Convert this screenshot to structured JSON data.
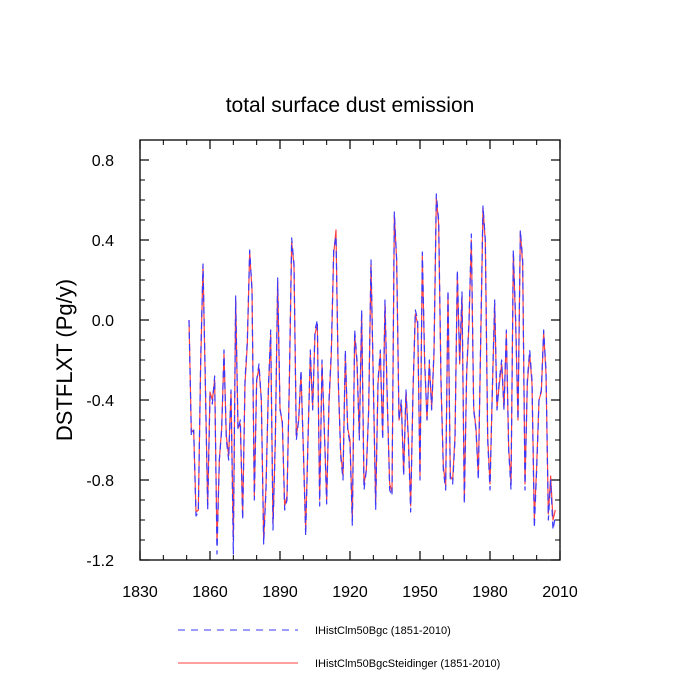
{
  "chart_data": {
    "type": "line",
    "title": "total surface dust emission",
    "xlabel": "",
    "ylabel": "DSTFLXT  (Pg/y)",
    "xlim": [
      1830,
      2010
    ],
    "ylim": [
      -1.2,
      0.9
    ],
    "xticks": [
      1830,
      1860,
      1890,
      1920,
      1950,
      1980,
      2010
    ],
    "xtick_labels": [
      "1830",
      "1860",
      "1890",
      "1920",
      "1950",
      "1980",
      "2010"
    ],
    "yticks": [
      -1.2,
      -0.8,
      -0.4,
      0.0,
      0.4,
      0.8
    ],
    "ytick_labels": [
      "-1.2",
      "-0.8",
      "-0.4",
      "0.0",
      "0.4",
      "0.8"
    ],
    "grid": false,
    "legend_position": "bottom",
    "x_start": 1851,
    "x_step": 1,
    "series": [
      {
        "name": "IHistClm50Bgc (1851-2010)",
        "color": "#3a3aff",
        "dash": "dashed",
        "values": [
          0.0,
          -0.58,
          -0.55,
          -0.98,
          -0.96,
          -0.2,
          0.28,
          -0.3,
          -0.95,
          -0.38,
          -0.42,
          -0.28,
          -1.17,
          -0.7,
          -0.55,
          -0.15,
          -0.6,
          -0.7,
          -0.35,
          -1.17,
          0.12,
          -0.55,
          -0.5,
          -1.0,
          -0.3,
          -0.1,
          0.35,
          0.15,
          -0.9,
          -0.3,
          -0.22,
          -0.4,
          -1.12,
          -0.85,
          -0.35,
          -0.05,
          -1.05,
          -0.6,
          0.21,
          -0.45,
          -0.5,
          -0.95,
          -0.9,
          -0.3,
          0.41,
          0.28,
          -0.6,
          -0.5,
          -0.25,
          -0.65,
          -1.08,
          -0.6,
          -0.15,
          -0.45,
          -0.05,
          0.0,
          -0.93,
          -0.2,
          -0.55,
          -0.92,
          -0.4,
          -0.15,
          0.35,
          0.42,
          -0.3,
          -0.68,
          -0.8,
          -0.15,
          -0.55,
          -0.62,
          -1.03,
          -0.05,
          -0.2,
          -0.6,
          0.05,
          -0.85,
          -0.75,
          -0.45,
          0.3,
          -0.3,
          -0.95,
          -0.3,
          -0.15,
          -0.6,
          0.1,
          -0.4,
          -0.85,
          -0.88,
          0.54,
          0.3,
          -0.5,
          -0.4,
          -0.78,
          -0.35,
          -0.6,
          -0.96,
          -0.35,
          0.05,
          0.0,
          -0.8,
          0.34,
          -0.2,
          -0.5,
          -0.2,
          -0.45,
          -0.15,
          0.63,
          0.5,
          -0.3,
          -0.75,
          -0.85,
          0.15,
          -0.8,
          -0.82,
          -0.6,
          0.25,
          -0.2,
          0.14,
          -0.92,
          -0.25,
          0.0,
          0.43,
          -0.45,
          -0.55,
          -0.8,
          -0.1,
          0.57,
          0.4,
          -0.6,
          -0.85,
          -0.35,
          0.1,
          -0.45,
          -0.3,
          -0.2,
          -0.45,
          -0.05,
          -0.65,
          -0.85,
          0.35,
          0.0,
          -0.5,
          0.45,
          0.3,
          -0.85,
          -0.3,
          -0.15,
          -0.3,
          -1.04,
          -0.75,
          -0.4,
          -0.35,
          -0.05,
          -0.25,
          -1.0,
          -0.8,
          -1.05,
          -0.98
        ]
      },
      {
        "name": "IHistClm50BgcSteidinger (1851-2010)",
        "color": "#ff4040",
        "dash": "solid",
        "values": [
          0.0,
          -0.56,
          -0.55,
          -0.96,
          -0.95,
          -0.22,
          0.27,
          -0.32,
          -0.93,
          -0.36,
          -0.4,
          -0.3,
          -1.12,
          -0.7,
          -0.54,
          -0.17,
          -0.58,
          -0.68,
          -0.36,
          -1.1,
          0.1,
          -0.54,
          -0.52,
          -0.98,
          -0.32,
          -0.12,
          0.34,
          0.15,
          -0.88,
          -0.3,
          -0.24,
          -0.4,
          -1.1,
          -0.83,
          -0.36,
          -0.07,
          -1.02,
          -0.6,
          0.19,
          -0.44,
          -0.52,
          -0.93,
          -0.88,
          -0.32,
          0.39,
          0.27,
          -0.58,
          -0.5,
          -0.27,
          -0.64,
          -1.05,
          -0.6,
          -0.17,
          -0.44,
          -0.07,
          -0.02,
          -0.9,
          -0.22,
          -0.55,
          -0.9,
          -0.42,
          -0.17,
          0.33,
          0.45,
          -0.32,
          -0.66,
          -0.78,
          -0.17,
          -0.54,
          -0.6,
          -1.0,
          -0.07,
          -0.22,
          -0.58,
          0.03,
          -0.82,
          -0.75,
          -0.45,
          0.28,
          -0.32,
          -0.92,
          -0.32,
          -0.17,
          -0.58,
          0.08,
          -0.42,
          -0.82,
          -0.86,
          0.52,
          0.3,
          -0.5,
          -0.42,
          -0.76,
          -0.36,
          -0.58,
          -0.93,
          -0.36,
          0.03,
          -0.02,
          -0.78,
          0.32,
          -0.22,
          -0.5,
          -0.22,
          -0.44,
          -0.17,
          0.61,
          0.48,
          -0.32,
          -0.73,
          -0.83,
          0.13,
          -0.78,
          -0.8,
          -0.58,
          0.23,
          -0.22,
          0.12,
          -0.9,
          -0.27,
          -0.02,
          0.4,
          -0.44,
          -0.54,
          -0.78,
          -0.12,
          0.56,
          0.39,
          -0.58,
          -0.82,
          -0.36,
          0.08,
          -0.44,
          -0.32,
          -0.22,
          -0.44,
          -0.07,
          -0.64,
          -0.82,
          0.33,
          -0.02,
          -0.5,
          0.44,
          0.28,
          -0.82,
          -0.32,
          -0.17,
          -0.32,
          -1.0,
          -0.73,
          -0.4,
          -0.36,
          -0.06,
          -0.27,
          -0.97,
          -0.78,
          -1.0,
          -0.95
        ]
      }
    ]
  }
}
